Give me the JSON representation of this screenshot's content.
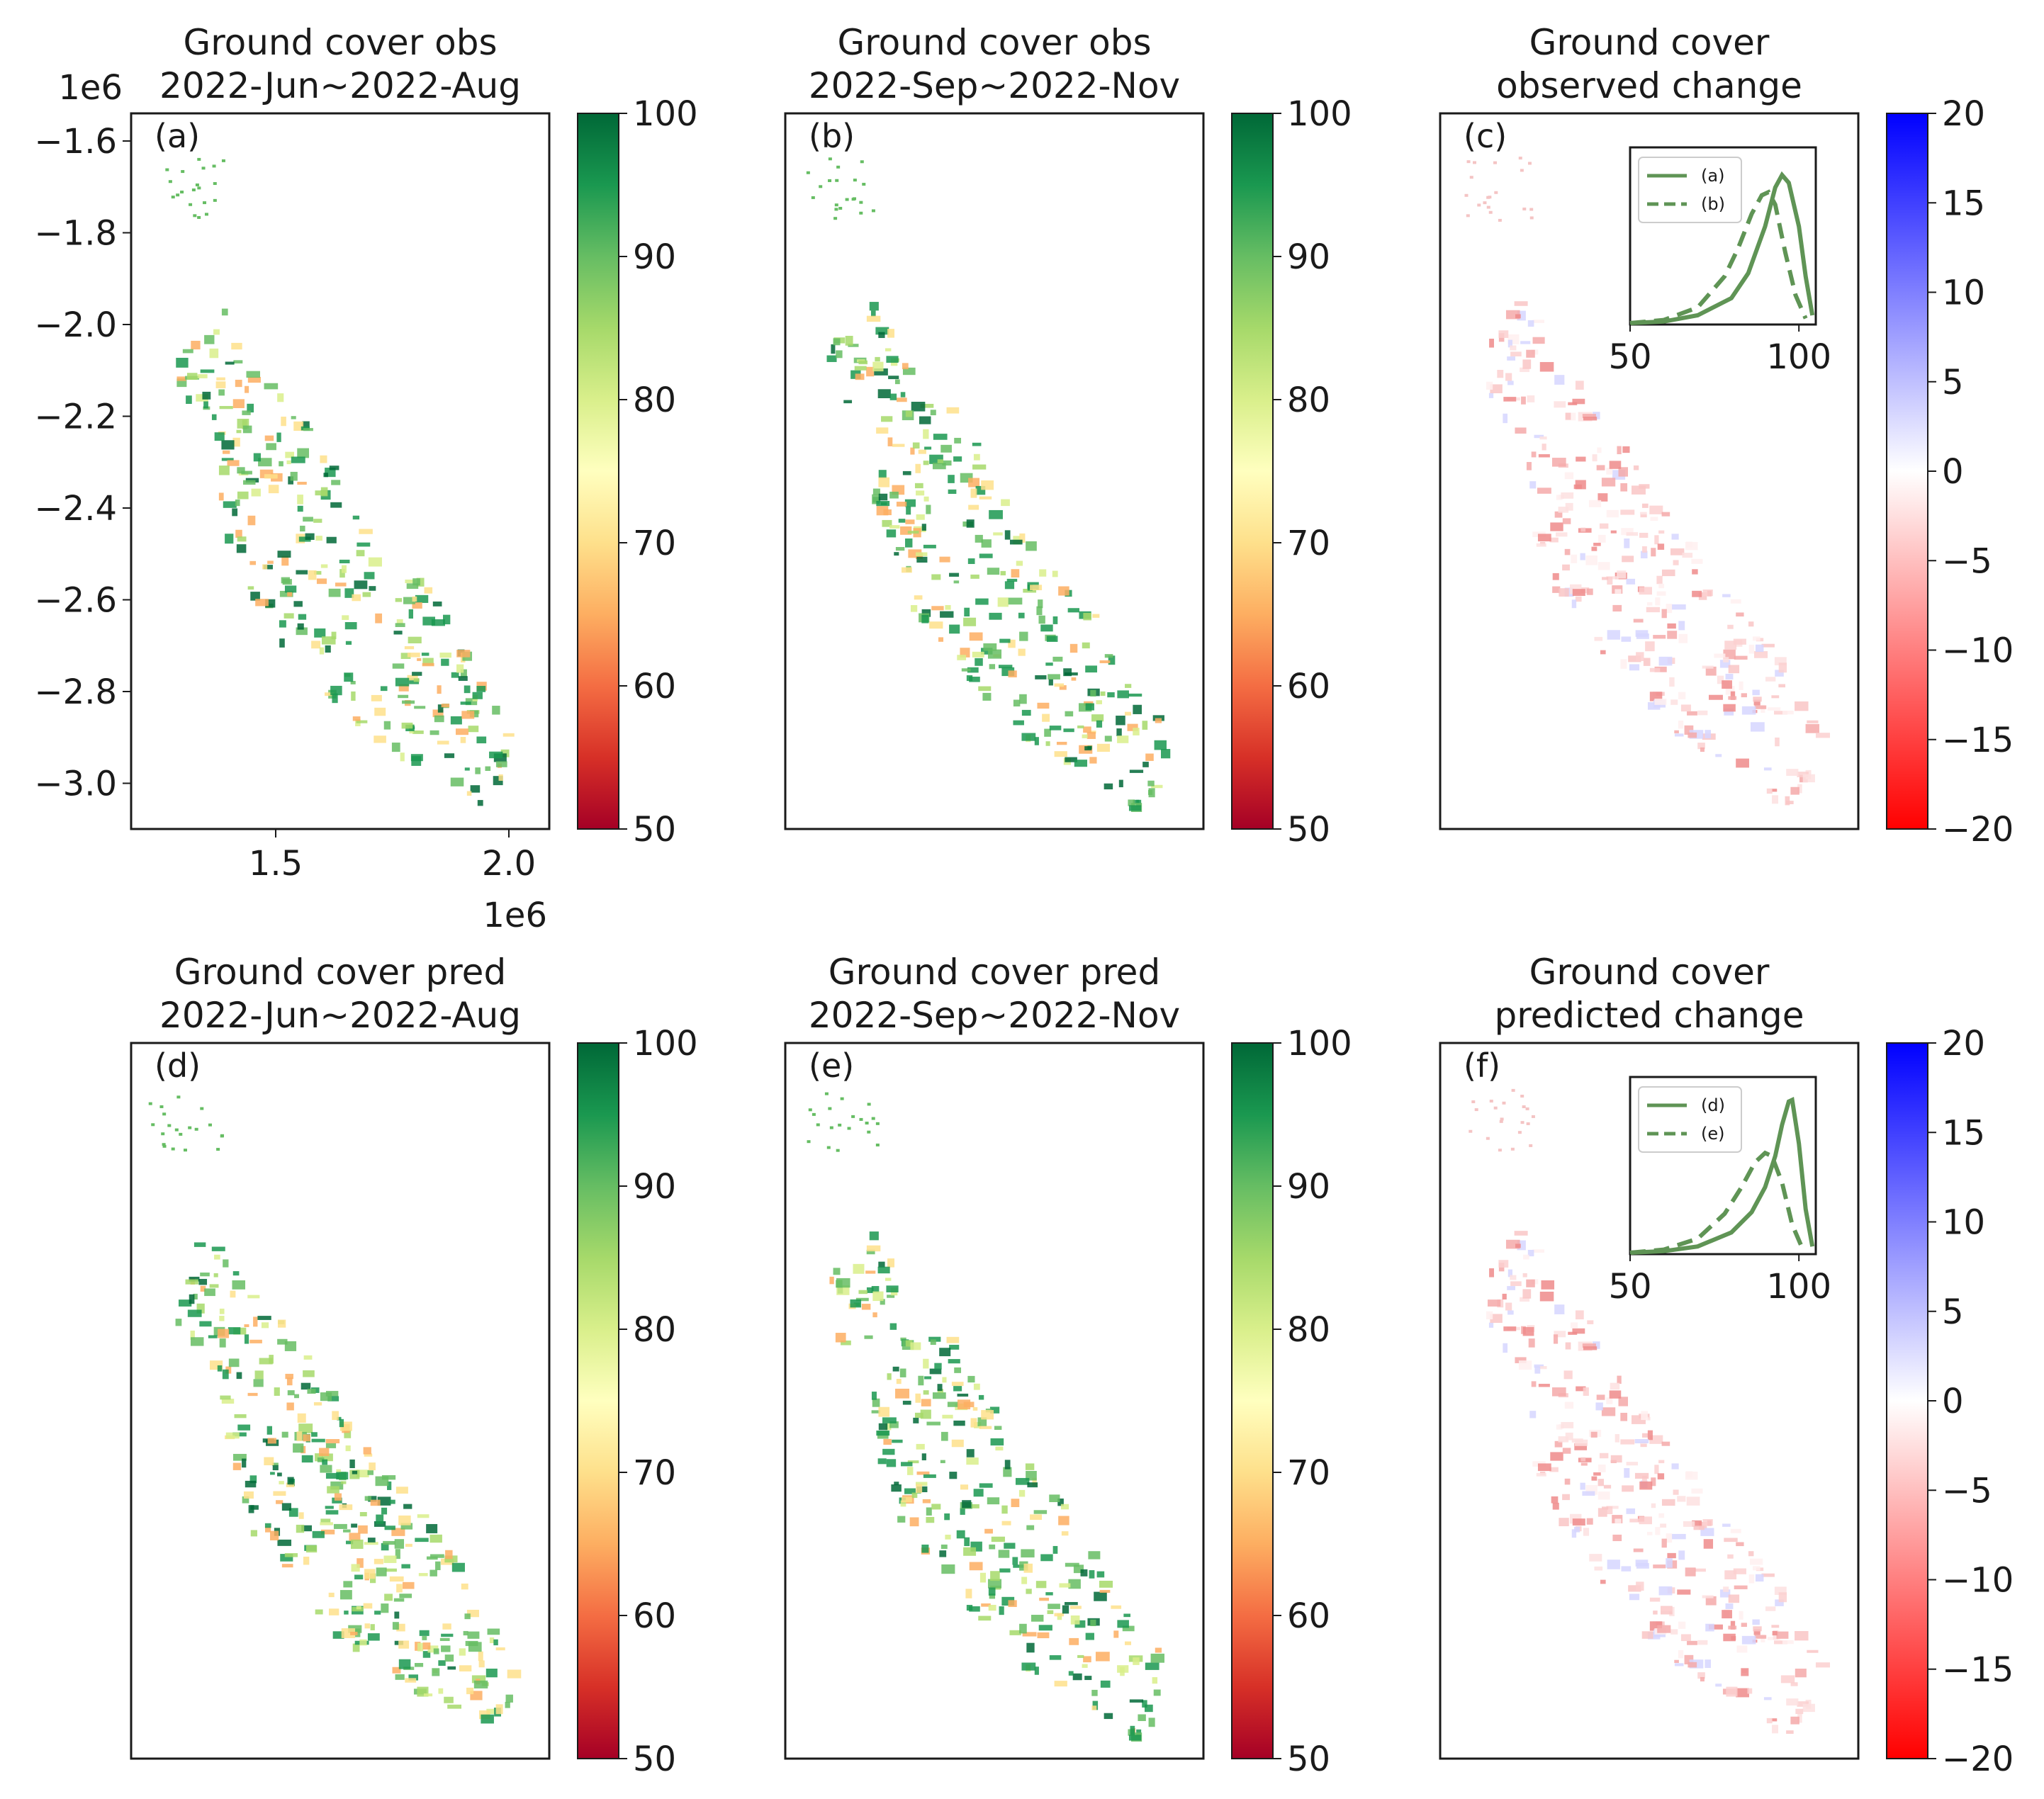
{
  "figure": {
    "panels": [
      {
        "id": "a",
        "label": "(a)",
        "title_line1": "Ground cover obs",
        "title_line2": "2022-Jun~2022-Aug",
        "kind": "cover"
      },
      {
        "id": "b",
        "label": "(b)",
        "title_line1": "Ground cover obs",
        "title_line2": "2022-Sep~2022-Nov",
        "kind": "cover"
      },
      {
        "id": "c",
        "label": "(c)",
        "title_line1": "Ground cover",
        "title_line2": "observed change",
        "kind": "change"
      },
      {
        "id": "d",
        "label": "(d)",
        "title_line1": "Ground cover pred",
        "title_line2": "2022-Jun~2022-Aug",
        "kind": "cover"
      },
      {
        "id": "e",
        "label": "(e)",
        "title_line1": "Ground cover pred",
        "title_line2": "2022-Sep~2022-Nov",
        "kind": "cover"
      },
      {
        "id": "f",
        "label": "(f)",
        "title_line1": "Ground cover",
        "title_line2": "predicted change",
        "kind": "change"
      }
    ],
    "axes": {
      "y_offset_label": "1e6",
      "x_offset_label": "1e6",
      "y_ticks": [
        "−1.6",
        "−1.8",
        "−2.0",
        "−2.2",
        "−2.4",
        "−2.6",
        "−2.8",
        "−3.0"
      ],
      "x_ticks": [
        "1.5",
        "2.0"
      ]
    },
    "colorbar_cover": {
      "ticks": [
        "100",
        "90",
        "80",
        "70",
        "60",
        "50"
      ],
      "colors": [
        "#006837",
        "#1a9850",
        "#66bd63",
        "#a6d96a",
        "#d9ef8b",
        "#ffffbf",
        "#fee08b",
        "#fdae61",
        "#f46d43",
        "#d73027",
        "#a50026"
      ]
    },
    "colorbar_change": {
      "ticks": [
        "20",
        "15",
        "10",
        "5",
        "0",
        "−5",
        "−10",
        "−15",
        "−20"
      ],
      "colors": [
        "#0000ff",
        "#ffffff",
        "#ff0000"
      ]
    },
    "insets": [
      {
        "panel": "c",
        "legend": [
          "(a)",
          "(b)"
        ],
        "x_ticks": [
          "50",
          "100"
        ]
      },
      {
        "panel": "f",
        "legend": [
          "(d)",
          "(e)"
        ],
        "x_ticks": [
          "50",
          "100"
        ]
      }
    ]
  },
  "chart_data": [
    {
      "type": "heatmap",
      "panel": "(a)",
      "title": "Ground cover obs 2022-Jun~2022-Aug",
      "colorbar_range": [
        50,
        100
      ],
      "xlim": [
        1.2,
        2.1
      ],
      "ylim": [
        -3.1,
        -1.55
      ],
      "axis_scale": "1e6",
      "xlabel": "",
      "ylabel": ""
    },
    {
      "type": "heatmap",
      "panel": "(b)",
      "title": "Ground cover obs 2022-Sep~2022-Nov",
      "colorbar_range": [
        50,
        100
      ]
    },
    {
      "type": "heatmap",
      "panel": "(c)",
      "title": "Ground cover observed change",
      "colorbar_range": [
        -20,
        20
      ],
      "inset": {
        "type": "line",
        "xlim": [
          50,
          105
        ],
        "series": [
          {
            "name": "(a)",
            "style": "solid",
            "x": [
              50,
              60,
              70,
              80,
              85,
              90,
              93,
              95,
              97,
              100,
              102,
              104
            ],
            "y": [
              0.0,
              0.01,
              0.05,
              0.16,
              0.32,
              0.62,
              0.87,
              0.95,
              0.9,
              0.62,
              0.3,
              0.05
            ]
          },
          {
            "name": "(b)",
            "style": "dashed",
            "x": [
              50,
              60,
              70,
              78,
              82,
              86,
              89,
              91,
              93,
              96,
              99,
              102
            ],
            "y": [
              0.0,
              0.02,
              0.1,
              0.3,
              0.48,
              0.7,
              0.82,
              0.84,
              0.76,
              0.45,
              0.18,
              0.03
            ]
          }
        ]
      }
    },
    {
      "type": "heatmap",
      "panel": "(d)",
      "title": "Ground cover pred 2022-Jun~2022-Aug",
      "colorbar_range": [
        50,
        100
      ]
    },
    {
      "type": "heatmap",
      "panel": "(e)",
      "title": "Ground cover pred 2022-Sep~2022-Nov",
      "colorbar_range": [
        50,
        100
      ]
    },
    {
      "type": "heatmap",
      "panel": "(f)",
      "title": "Ground cover predicted change",
      "colorbar_range": [
        -20,
        20
      ],
      "inset": {
        "type": "line",
        "xlim": [
          50,
          105
        ],
        "series": [
          {
            "name": "(d)",
            "style": "solid",
            "x": [
              50,
              60,
              70,
              80,
              86,
              90,
              93,
              95,
              97,
              98,
              100,
              102,
              104
            ],
            "y": [
              0.0,
              0.01,
              0.04,
              0.13,
              0.26,
              0.42,
              0.62,
              0.82,
              0.97,
              0.98,
              0.7,
              0.28,
              0.04
            ]
          },
          {
            "name": "(e)",
            "style": "dashed",
            "x": [
              50,
              60,
              70,
              78,
              83,
              87,
              90,
              92,
              95,
              98,
              101
            ],
            "y": [
              0.0,
              0.02,
              0.09,
              0.25,
              0.42,
              0.58,
              0.64,
              0.62,
              0.45,
              0.18,
              0.03
            ]
          }
        ]
      }
    }
  ]
}
